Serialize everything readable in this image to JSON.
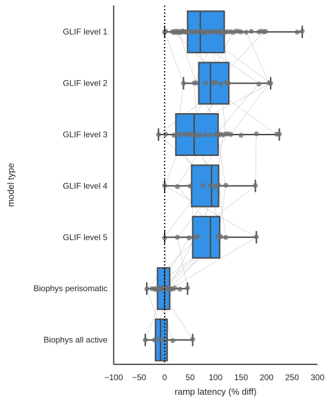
{
  "chart_data": {
    "type": "box",
    "orientation": "horizontal",
    "xlabel": "ramp latency (% diff)",
    "ylabel": "model type",
    "xlim": [
      -100,
      300
    ],
    "xticks": [
      -100,
      -50,
      0,
      50,
      100,
      150,
      200,
      250,
      300
    ],
    "reference_line_x": 0,
    "categories": [
      "GLIF level 1",
      "GLIF level 2",
      "GLIF level 3",
      "GLIF level 4",
      "GLIF level 5",
      "Biophys perisomatic",
      "Biophys all active"
    ],
    "box_color": "#3392e8",
    "boxes": [
      {
        "category": "GLIF level 1",
        "whisker_low": 0,
        "q1": 45,
        "median": 70,
        "q3": 117,
        "whisker_high": 270
      },
      {
        "category": "GLIF level 2",
        "whisker_low": 37,
        "q1": 67,
        "median": 90,
        "q3": 126,
        "whisker_high": 208
      },
      {
        "category": "GLIF level 3",
        "whisker_low": -12,
        "q1": 22,
        "median": 58,
        "q3": 105,
        "whisker_high": 225
      },
      {
        "category": "GLIF level 4",
        "whisker_low": 0,
        "q1": 53,
        "median": 92,
        "q3": 106,
        "whisker_high": 178
      },
      {
        "category": "GLIF level 5",
        "whisker_low": 0,
        "q1": 55,
        "median": 90,
        "q3": 108,
        "whisker_high": 180
      },
      {
        "category": "Biophys perisomatic",
        "whisker_low": -35,
        "q1": -14,
        "median": 0,
        "q3": 10,
        "whisker_high": 45
      },
      {
        "category": "Biophys all active",
        "whisker_low": -38,
        "q1": -18,
        "median": -8,
        "q3": 5,
        "whisker_high": 55
      }
    ],
    "points": {
      "GLIF level 1": [
        0,
        2,
        15,
        18,
        20,
        22,
        25,
        28,
        30,
        33,
        35,
        38,
        40,
        43,
        46,
        50,
        55,
        60,
        65,
        70,
        75,
        78,
        80,
        85,
        90,
        95,
        100,
        103,
        106,
        110,
        113,
        116,
        120,
        125,
        130,
        135,
        140,
        145,
        150,
        160,
        170,
        185,
        190,
        195,
        198,
        260,
        270
      ],
      "GLIF level 2": [
        37,
        58,
        62,
        80,
        95,
        100,
        110,
        120,
        125,
        185,
        205,
        208
      ],
      "GLIF level 3": [
        -12,
        2,
        18,
        25,
        32,
        40,
        45,
        50,
        55,
        60,
        65,
        70,
        80,
        90,
        100,
        103,
        106,
        110,
        115,
        120,
        125,
        130,
        150,
        180,
        220,
        225
      ],
      "GLIF level 4": [
        0,
        25,
        50,
        75,
        90,
        100,
        104,
        106,
        120,
        178
      ],
      "GLIF level 5": [
        0,
        25,
        48,
        60,
        65,
        105,
        108,
        110,
        120,
        180
      ],
      "Biophys perisomatic": [
        -35,
        -25,
        -20,
        -18,
        -15,
        -12,
        -10,
        -8,
        -5,
        -2,
        0,
        2,
        5,
        8,
        10,
        12,
        15,
        20,
        30,
        45
      ],
      "Biophys all active": [
        -38,
        -20,
        -10,
        0,
        16,
        55
      ]
    }
  }
}
